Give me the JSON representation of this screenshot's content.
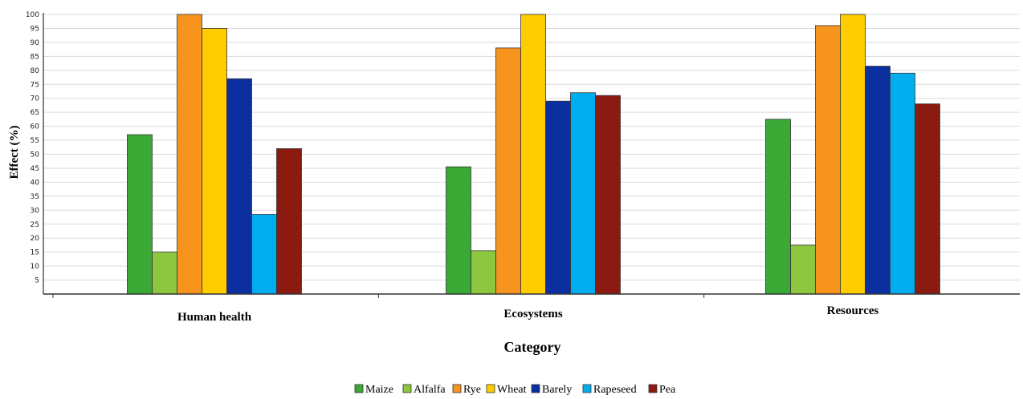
{
  "chart_data": {
    "type": "bar",
    "title": "",
    "xlabel": "Category",
    "ylabel": "Effect (%)",
    "ylim": [
      0,
      100
    ],
    "yticks": [
      5,
      10,
      15,
      20,
      25,
      30,
      35,
      40,
      45,
      50,
      55,
      60,
      65,
      70,
      75,
      80,
      85,
      90,
      95,
      100
    ],
    "grid": true,
    "legend_position": "bottom",
    "categories": [
      "Human health",
      "Ecosystems",
      "Resources"
    ],
    "series": [
      {
        "name": "Maize",
        "color": "#3aa935",
        "values": [
          57,
          45.5,
          62.5
        ]
      },
      {
        "name": "Alfalfa",
        "color": "#8dc63f",
        "values": [
          15,
          15.5,
          17.5
        ]
      },
      {
        "name": "Rye",
        "color": "#f7941d",
        "values": [
          100,
          88,
          96
        ]
      },
      {
        "name": "Wheat",
        "color": "#ffcc00",
        "values": [
          95,
          100,
          100
        ]
      },
      {
        "name": "Barely",
        "color": "#0b2f9f",
        "values": [
          77,
          69,
          81.5
        ]
      },
      {
        "name": "Rapeseed",
        "color": "#00aeef",
        "values": [
          28.5,
          72,
          79
        ]
      },
      {
        "name": "Pea",
        "color": "#8b1a10",
        "values": [
          52,
          71,
          68
        ]
      }
    ]
  }
}
